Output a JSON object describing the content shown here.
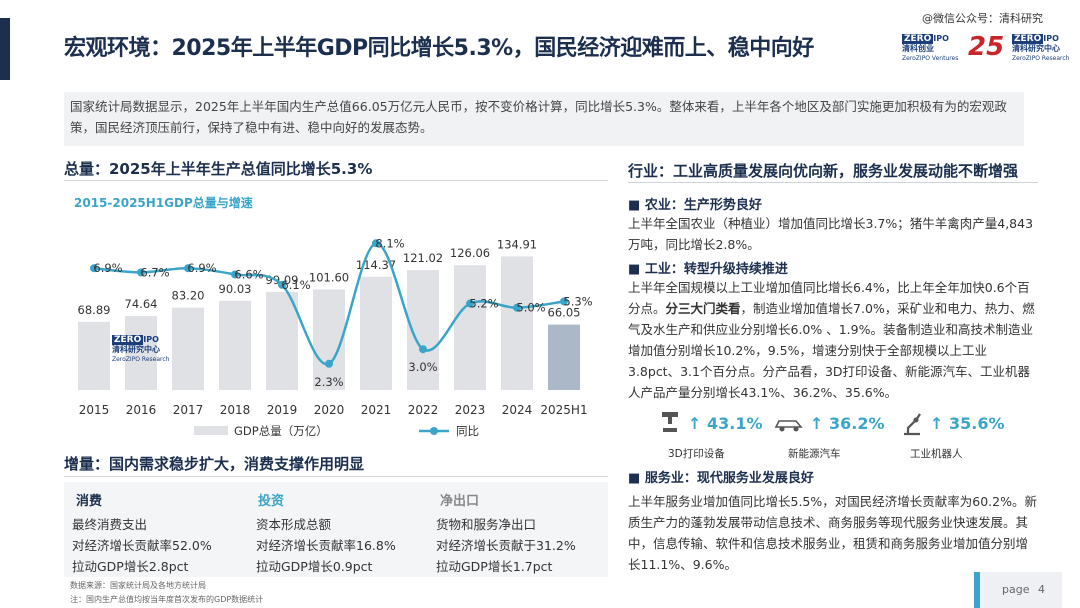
{
  "header": {
    "title": "宏观环境：2025年上半年GDP同比增长5.3%，国民经济迎难而上、稳中向好",
    "watermark": "@微信公众号：清科研究",
    "logo_left_zero": "ZERO",
    "logo_left_ipo": "IPO",
    "logo_left_name": "清科创业",
    "logo_left_en": "ZeroZIPO Ventures",
    "logo_25": "25",
    "logo_right_zero": "ZERO",
    "logo_right_ipo": "IPO",
    "logo_right_name": "清科研究中心",
    "logo_right_en": "ZeroZIPO Research"
  },
  "intro": "国家统计局数据显示，2025年上半年国内生产总值66.05万亿元人民币，按不变价格计算，同比增长5.3%。整体来看，上半年各个地区及部门实施更加积极有为的宏观政策，国民经济顶压前行，保持了稳中有进、稳中向好的发展态势。",
  "left": {
    "section_title": "总量：2025年上半年生产总值同比增长5.3%",
    "chart_subtitle": "2015-2025H1GDP总量与增速",
    "chart_watermark": {
      "zero": "ZERO",
      "ipo": "IPO",
      "name": "清科研究中心",
      "en": "ZeroZIPO Research"
    }
  },
  "chart_data": {
    "type": "bar",
    "title": "2015-2025H1GDP总量与增速",
    "categories": [
      "2015",
      "2016",
      "2017",
      "2018",
      "2019",
      "2020",
      "2021",
      "2022",
      "2023",
      "2024",
      "2025H1"
    ],
    "series": [
      {
        "name": "GDP总量（万亿）",
        "type": "bar",
        "values": [
          68.89,
          74.64,
          83.2,
          90.03,
          99.09,
          101.6,
          114.37,
          121.02,
          126.06,
          134.91,
          66.05
        ],
        "labels": [
          "68.89",
          "74.64",
          "83.20",
          "90.03",
          "99.09",
          "101.60",
          "114.37",
          "121.02",
          "126.06",
          "134.91",
          "66.05"
        ]
      },
      {
        "name": "同比",
        "type": "line",
        "values": [
          6.9,
          6.7,
          6.9,
          6.6,
          6.1,
          2.3,
          8.1,
          3.0,
          5.2,
          5.0,
          5.3
        ],
        "labels": [
          "6.9%",
          "6.7%",
          "6.9%",
          "6.6%",
          "6.1%",
          "2.3%",
          "8.1%",
          "3.0%",
          "5.2%",
          "5.0%",
          "5.3%"
        ]
      }
    ],
    "bar_colors": [
      "#dfe1e5",
      "#aab8c8"
    ],
    "line_color": "#3aa5c9",
    "legend_position": "bottom",
    "grid": false
  },
  "bottom": {
    "section_title": "增量：国内需求稳步扩大，消费支撑作用明显",
    "columns": [
      {
        "head": "消费",
        "color": "#1c2f4f",
        "rows": [
          "最终消费支出",
          "对经济增长贡献率52.0%",
          "拉动GDP增长2.8pct"
        ]
      },
      {
        "head": "投资",
        "color": "#3aa5c9",
        "rows": [
          "资本形成总额",
          "对经济增长贡献率16.8%",
          "拉动GDP增长0.9pct"
        ]
      },
      {
        "head": "净出口",
        "color": "#888888",
        "rows": [
          "货物和服务净出口",
          "对经济增长贡献于31.2%",
          "拉动GDP增长1.7pct"
        ]
      }
    ],
    "note1": "数据来源：国家统计局及各地方统计局",
    "note2": "注：国内生产总值均按当年度首次发布的GDP数据统计"
  },
  "right": {
    "section_title": "行业：工业高质量发展向优向新，服务业发展动能不断增强",
    "agri_head": "农业：生产形势良好",
    "agri_body": "上半年全国农业（种植业）增加值同比增长3.7%；猪牛羊禽肉产量4,843万吨，同比增长2.8%。",
    "ind_head": "工业：转型升级持续推进",
    "ind_body_a": "上半年全国规模以上工业增加值同比增长6.4%，比上年全年加快0.6个百分点。",
    "ind_body_bold": "分三大门类看",
    "ind_body_b": "，制造业增加值增长7.0%，采矿业和电力、热力、燃气及水生产和供应业分别增长6.0% 、1.9%。装备制造业和高技术制造业增加值分别增长10.2%，9.5%，增速分别快于全部规模以上工业3.8pct、3.1个百分点。分产品看，3D打印设备、新能源汽车、工业机器人产品产量分别增长43.1%、36.2%、35.6%。",
    "indicators": [
      {
        "icon": "3d-printer-icon",
        "value": "43.1%",
        "label": "3D打印设备"
      },
      {
        "icon": "car-icon",
        "value": "36.2%",
        "label": "新能源汽车"
      },
      {
        "icon": "robot-arm-icon",
        "value": "35.6%",
        "label": "工业机器人"
      }
    ],
    "svc_head": "服务业：现代服务业发展良好",
    "svc_body": "上半年服务业增加值同比增长5.5%，对国民经济增长贡献率为60.2%。新质生产力的蓬勃发展带动信息技术、商务服务等现代服务业快速发展。其中，信息传输、软件和信息技术服务业，租赁和商务服务业增加值分别增长11.1%、9.6%。"
  },
  "page": {
    "label": "page",
    "number": "4"
  }
}
